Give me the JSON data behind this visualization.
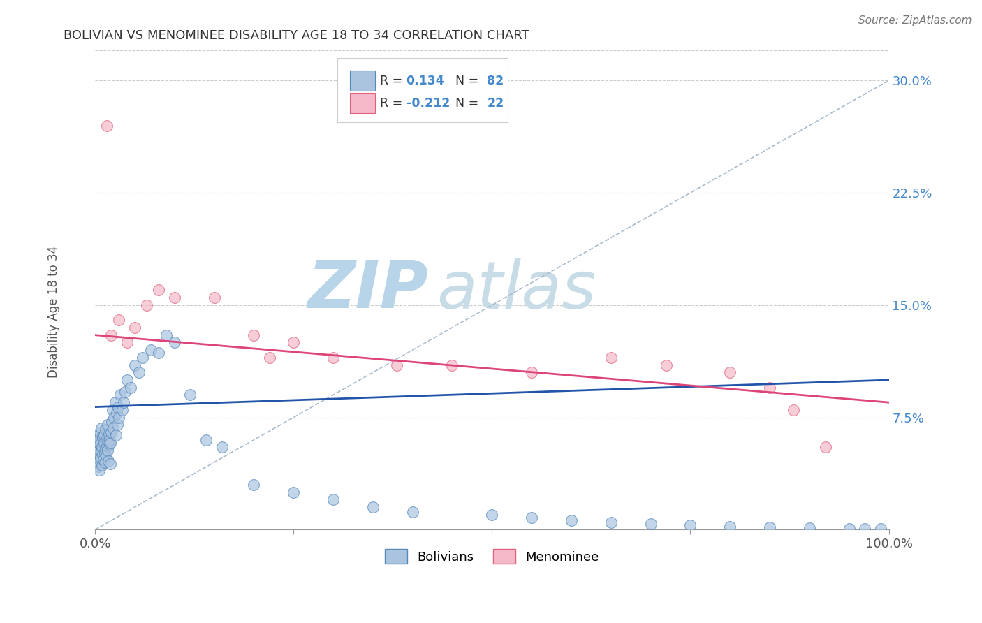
{
  "title": "BOLIVIAN VS MENOMINEE DISABILITY AGE 18 TO 34 CORRELATION CHART",
  "source_text": "Source: ZipAtlas.com",
  "ylabel": "Disability Age 18 to 34",
  "xlim": [
    0,
    100
  ],
  "ylim": [
    0,
    32
  ],
  "yticks": [
    7.5,
    15.0,
    22.5,
    30.0
  ],
  "ytick_labels_right": [
    "7.5%",
    "15.0%",
    "22.5%",
    "30.0%"
  ],
  "blue_R": 0.134,
  "blue_N": 82,
  "pink_R": -0.212,
  "pink_N": 22,
  "blue_color": "#aac4e0",
  "pink_color": "#f4b8c8",
  "blue_edge_color": "#5588bb",
  "pink_edge_color": "#e06080",
  "blue_line_color": "#2255aa",
  "pink_line_color": "#dd4477",
  "grey_dash_color": "#aabbcc",
  "background_color": "#ffffff",
  "grid_color": "#cccccc",
  "title_color": "#333333",
  "watermark_color": "#cce0ee",
  "watermark_text": "ZIPatlas",
  "legend_box_color": "#f8f8f8",
  "legend_box_edge": "#cccccc",
  "blue_scatter_x": [
    0.1,
    0.15,
    0.2,
    0.25,
    0.3,
    0.35,
    0.4,
    0.45,
    0.5,
    0.55,
    0.6,
    0.65,
    0.7,
    0.75,
    0.8,
    0.85,
    0.9,
    0.95,
    1.0,
    1.05,
    1.1,
    1.15,
    1.2,
    1.25,
    1.3,
    1.35,
    1.4,
    1.45,
    1.5,
    1.55,
    1.6,
    1.65,
    1.7,
    1.75,
    1.8,
    1.85,
    1.9,
    1.95,
    2.0,
    2.1,
    2.2,
    2.3,
    2.4,
    2.5,
    2.6,
    2.7,
    2.8,
    2.9,
    3.0,
    3.2,
    3.4,
    3.6,
    3.8,
    4.0,
    4.5,
    5.0,
    5.5,
    6.0,
    7.0,
    8.0,
    9.0,
    10.0,
    12.0,
    14.0,
    16.0,
    20.0,
    25.0,
    30.0,
    35.0,
    40.0,
    50.0,
    55.0,
    60.0,
    65.0,
    70.0,
    75.0,
    80.0,
    85.0,
    90.0,
    95.0,
    97.0,
    99.0
  ],
  "blue_scatter_y": [
    5.5,
    4.8,
    6.2,
    5.0,
    4.5,
    5.8,
    6.0,
    4.2,
    5.3,
    4.0,
    5.7,
    6.5,
    4.8,
    5.2,
    6.8,
    5.5,
    4.3,
    6.2,
    5.0,
    4.7,
    6.3,
    5.8,
    4.5,
    5.1,
    6.7,
    5.4,
    4.9,
    6.1,
    5.6,
    5.3,
    7.0,
    5.9,
    4.6,
    6.4,
    5.7,
    6.0,
    4.4,
    5.8,
    6.5,
    7.2,
    8.0,
    6.8,
    7.5,
    8.5,
    6.3,
    7.8,
    7.0,
    8.2,
    7.5,
    9.0,
    8.0,
    8.5,
    9.2,
    10.0,
    9.5,
    11.0,
    10.5,
    11.5,
    12.0,
    11.8,
    13.0,
    12.5,
    9.0,
    6.0,
    5.5,
    3.0,
    2.5,
    2.0,
    1.5,
    1.2,
    1.0,
    0.8,
    0.6,
    0.5,
    0.4,
    0.3,
    0.2,
    0.15,
    0.1,
    0.08,
    0.07,
    0.06
  ],
  "pink_scatter_x": [
    1.5,
    2.0,
    3.0,
    4.0,
    5.0,
    6.5,
    8.0,
    10.0,
    15.0,
    20.0,
    22.0,
    25.0,
    30.0,
    38.0,
    45.0,
    55.0,
    65.0,
    72.0,
    80.0,
    85.0,
    88.0,
    92.0
  ],
  "pink_scatter_y": [
    27.0,
    13.0,
    14.0,
    12.5,
    13.5,
    15.0,
    16.0,
    15.5,
    15.5,
    13.0,
    11.5,
    12.5,
    11.5,
    11.0,
    11.0,
    10.5,
    11.5,
    11.0,
    10.5,
    9.5,
    8.0,
    5.5
  ],
  "grey_line_x0": 0,
  "grey_line_y0": 0,
  "grey_line_x1": 100,
  "grey_line_y1": 30,
  "blue_line_x0": 0,
  "blue_line_y0": 8.2,
  "blue_line_x1": 100,
  "blue_line_y1": 10.0,
  "pink_line_x0": 0,
  "pink_line_y0": 13.0,
  "pink_line_x1": 100,
  "pink_line_y1": 8.5
}
